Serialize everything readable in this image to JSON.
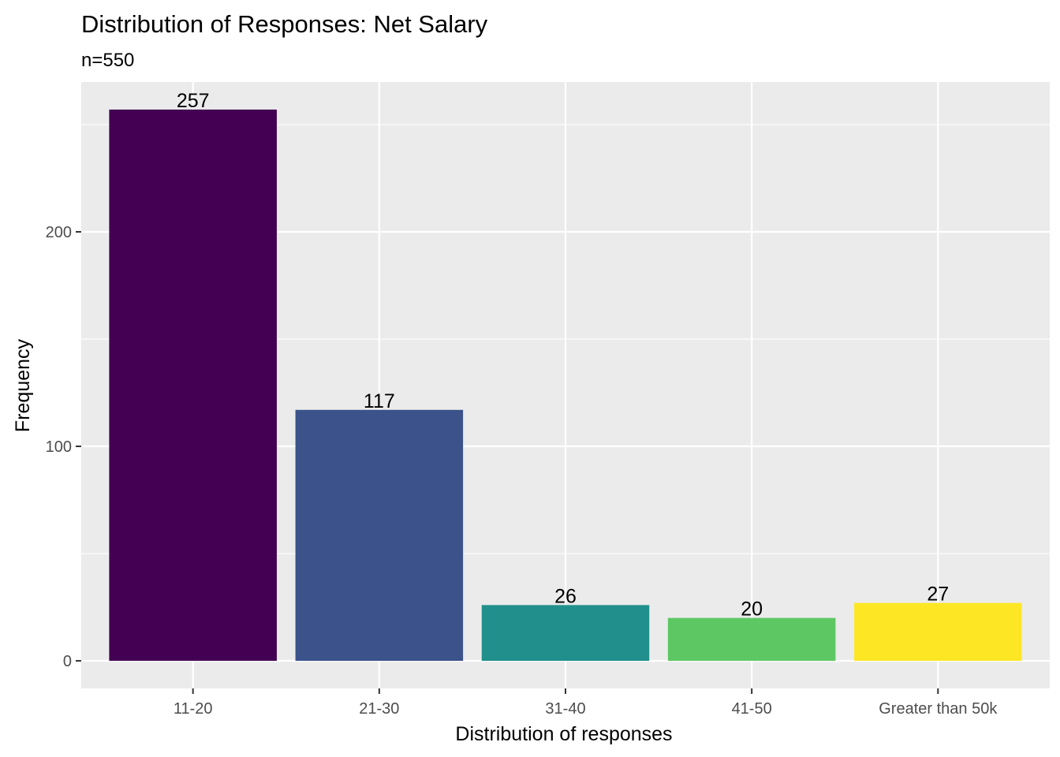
{
  "chart_data": {
    "type": "bar",
    "title": "Distribution of Responses: Net Salary",
    "subtitle": "n=550",
    "xlabel": "Distribution of responses",
    "ylabel": "Frequency",
    "categories": [
      "11-20",
      "21-30",
      "31-40",
      "41-50",
      "Greater than 50k"
    ],
    "values": [
      257,
      117,
      26,
      20,
      27
    ],
    "data_labels": [
      "257",
      "117",
      "26",
      "20",
      "27"
    ],
    "colors": [
      "#440154",
      "#3b528b",
      "#21908c",
      "#5dc863",
      "#fde725"
    ],
    "y_ticks": [
      0,
      100,
      200
    ],
    "y_tick_labels": [
      "0",
      "100",
      "200"
    ],
    "ylim": [
      -12.85,
      269.85
    ],
    "panel_background": "#ebebeb",
    "grid": true,
    "legend": "none"
  }
}
